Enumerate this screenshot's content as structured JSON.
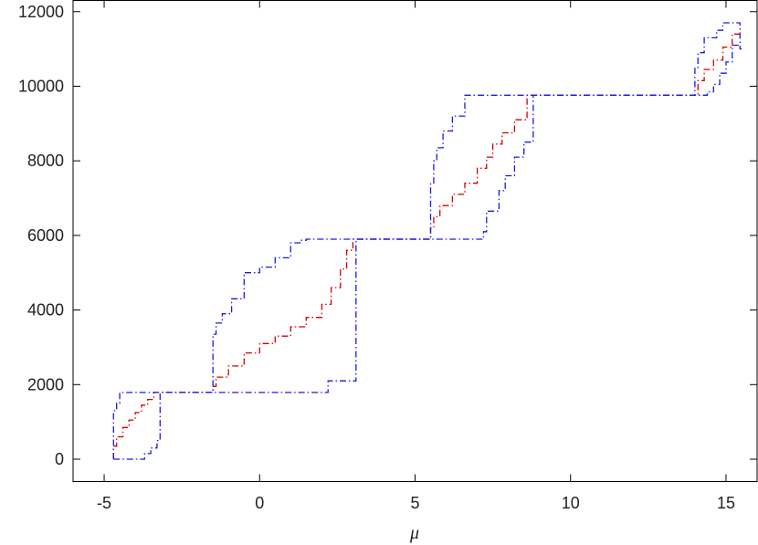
{
  "chart_data": {
    "type": "line",
    "title": "",
    "xlabel": "μ",
    "ylabel": "",
    "xlim": [
      -6,
      16
    ],
    "ylim": [
      -600,
      12300
    ],
    "xticks": [
      -5,
      0,
      5,
      10,
      15
    ],
    "xtick_labels": [
      "-5",
      "0",
      "5",
      "10",
      "15"
    ],
    "yticks": [
      0,
      2000,
      4000,
      6000,
      8000,
      10000,
      12000
    ],
    "ytick_labels": [
      "0",
      "2000",
      "4000",
      "6000",
      "8000",
      "10000",
      "12000"
    ],
    "grid": false,
    "legend": null,
    "series": [
      {
        "color": "#d40000",
        "dash": "dash-dot",
        "x": [
          -4.7,
          -4.6,
          -4.4,
          -4.2,
          -4.0,
          -3.8,
          -3.6,
          -3.4,
          -3.2,
          -1.5,
          -1.4,
          -1.0,
          -0.5,
          0.0,
          0.5,
          1.0,
          1.5,
          2.0,
          2.3,
          2.6,
          2.8,
          3.0,
          3.1,
          5.5,
          5.6,
          5.8,
          6.2,
          6.6,
          7.0,
          7.3,
          7.5,
          7.8,
          8.2,
          8.6,
          8.9,
          14.1,
          14.3,
          14.6,
          14.9,
          15.2,
          15.45
        ],
        "y": [
          0,
          350,
          600,
          850,
          1050,
          1250,
          1450,
          1600,
          1790,
          1790,
          1950,
          2200,
          2500,
          2850,
          3100,
          3300,
          3550,
          3800,
          4150,
          4600,
          5100,
          5600,
          5900,
          5900,
          6200,
          6500,
          6800,
          7100,
          7400,
          7800,
          8100,
          8450,
          8750,
          9100,
          9760,
          9760,
          10150,
          10450,
          10700,
          11050,
          11400
        ]
      },
      {
        "color": "#1a1ae6",
        "dash": "dash-dot",
        "x": [
          -4.7,
          -4.6,
          -4.5,
          -4.4,
          -1.5,
          -1.4,
          -1.2,
          -0.9,
          -0.5,
          0.0,
          0.5,
          1.0,
          1.3,
          1.5,
          2.1,
          3.1,
          5.5,
          5.6,
          5.7,
          5.9,
          6.2,
          6.6,
          7.3,
          8.9,
          14.0,
          14.1,
          14.3,
          14.7,
          14.9,
          15.2,
          15.45,
          15.5
        ],
        "y": [
          0,
          1300,
          1500,
          1790,
          1790,
          3350,
          3650,
          3900,
          4300,
          5000,
          5150,
          5400,
          5800,
          5870,
          5900,
          5900,
          5900,
          7400,
          8000,
          8350,
          8800,
          9200,
          9760,
          9760,
          9760,
          10500,
          10900,
          11300,
          11500,
          11700,
          11700,
          11000
        ]
      },
      {
        "color": "#1a1ae6",
        "dash": "dash-dot",
        "x": [
          -4.7,
          -4.2,
          -3.7,
          -3.5,
          -3.3,
          -3.2,
          -3.2,
          -1.5,
          2.2,
          2.2,
          3.1,
          3.1,
          5.5,
          7.2,
          7.3,
          7.7,
          7.9,
          8.2,
          8.5,
          8.8,
          8.9,
          14.4,
          14.6,
          14.8,
          15.0,
          15.2,
          15.45
        ],
        "y": [
          0,
          0,
          0,
          150,
          300,
          500,
          1790,
          1790,
          1790,
          2100,
          2100,
          5900,
          5900,
          5900,
          6100,
          6650,
          7200,
          7600,
          8100,
          8500,
          9760,
          9760,
          9850,
          10050,
          10350,
          10650,
          11100
        ]
      }
    ]
  }
}
